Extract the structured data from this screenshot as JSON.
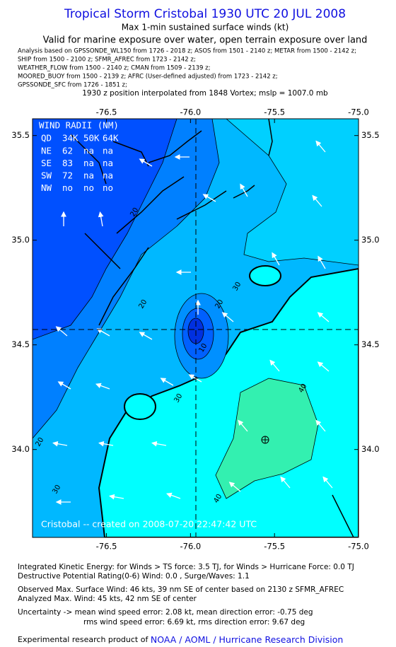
{
  "header": {
    "title": "Tropical Storm Cristobal 1930 UTC 20 JUL 2008",
    "subtitle": "Max 1-min sustained surface winds (kt)",
    "validity": "Valid for marine exposure over water, open terrain exposure over land",
    "sources": [
      "Analysis based on  GPSSONDE_WL150 from 1726 - 2018 z;  ASOS from 1501 - 2140 z;  METAR from 1500 - 2142 z;",
      "SHIP from 1500 - 2100 z;  SFMR_AFREC from 1723 - 2142 z;",
      "WEATHER_FLOW from 1500 - 2140 z;  CMAN from 1509 - 2139 z;",
      "MOORED_BUOY from 1500 - 2139 z;  AFRC (User-defined adjusted) from 1723 - 2142 z;",
      "GPSSONDE_SFC from 1726 - 1851 z;"
    ],
    "position_note": "1930 z position interpolated from 1848 Vortex; mslp = 1007.0 mb"
  },
  "map": {
    "xlim": [
      -76.94,
      -75.0
    ],
    "ylim": [
      33.58,
      35.58
    ],
    "xticks": [
      -76.5,
      {
        "value": -76,
        "label": "-76.0"
      },
      -75.5,
      {
        "value": -75,
        "label": "-75.0"
      }
    ],
    "yticks": [
      {
        "value": 34,
        "label": "34.0"
      },
      34.5,
      {
        "value": 35,
        "label": "35.0"
      },
      35.5
    ],
    "wind_radii": {
      "title": "WIND RADII (NM)",
      "header": [
        "QD",
        "34K",
        "50K",
        "64K"
      ],
      "rows": [
        [
          "NE",
          62,
          "na",
          "na"
        ],
        [
          "SE",
          83,
          "na",
          "na"
        ],
        [
          "SW",
          72,
          "na",
          "na"
        ],
        [
          "NW",
          "no",
          "no",
          "no"
        ]
      ]
    },
    "contour_labels": [
      20,
      20,
      30,
      20,
      10,
      30,
      40,
      40,
      20,
      30
    ],
    "credit": "Cristobal -- created on 2008-07-20 22:47:42 UTC"
  },
  "footer": {
    "ike": "Integrated Kinetic Energy:  for Winds > TS force: 3.5 TJ,  for Winds > Hurricane Force: 0.0 TJ",
    "dpr": "Destructive Potential Rating(0-6)   Wind: 0.0 , Surge/Waves: 1.1",
    "observed": "Observed Max. Surface Wind: 46 kts, 39 nm SE of center based on 2130 z SFMR_AFREC",
    "analyzed": "Analyzed Max. Wind: 45 kts, 42 nm SE of center",
    "uncertainty_mean": "Uncertainty -> mean wind speed error: 2.08 kt,   mean direction error:  -0.75 deg",
    "uncertainty_rms": "rms wind speed error: 6.69 kt,   rms direction error: 9.67 deg",
    "product": "Experimental research product of ",
    "organization": "NOAA / AOML / Hurricane Research Division"
  }
}
